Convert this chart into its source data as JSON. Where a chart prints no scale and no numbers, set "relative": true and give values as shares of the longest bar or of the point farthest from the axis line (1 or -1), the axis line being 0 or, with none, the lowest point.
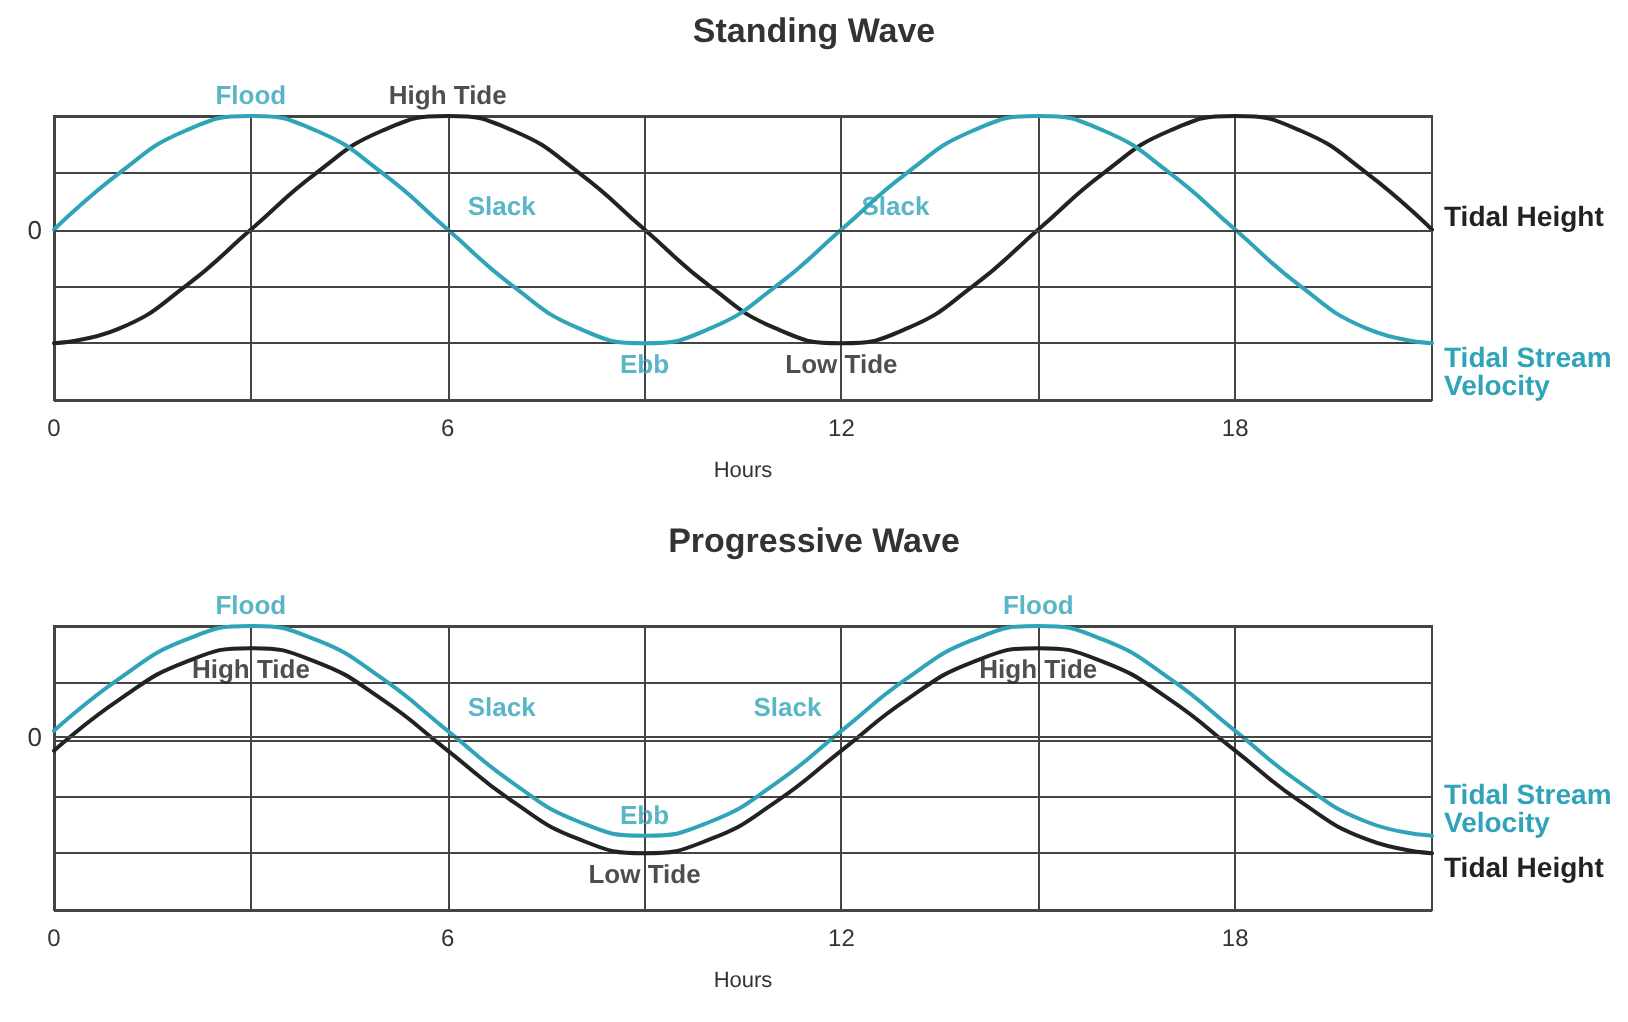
{
  "chart_data": [
    {
      "type": "line",
      "title": "Standing Wave",
      "xlabel": "Hours",
      "relative": true,
      "grid": true,
      "legend": false,
      "marker": "none",
      "line_style": "solid",
      "xlim": [
        0,
        21
      ],
      "xticks": [
        0,
        {
          "value": 3,
          "label": null
        },
        6,
        {
          "value": 9,
          "label": null
        },
        12,
        {
          "value": 15,
          "label": null
        },
        18
      ],
      "x": [
        0,
        1,
        2,
        3,
        4,
        5,
        6,
        7,
        8,
        9,
        10,
        11,
        12,
        13,
        14,
        15,
        16,
        17,
        18,
        19,
        20,
        21
      ],
      "series": [
        {
          "name": "Tidal Height",
          "color": "#222222",
          "values": [
            -1,
            -0.87,
            -0.5,
            0,
            0.5,
            0.87,
            1,
            0.87,
            0.5,
            0,
            -0.5,
            -0.87,
            -1,
            -0.87,
            -0.5,
            0,
            0.5,
            0.87,
            1,
            0.87,
            0.5,
            0
          ]
        },
        {
          "name": "Tidal Stream Velocity",
          "color": "#2fa4b8",
          "values": [
            0,
            0.5,
            0.87,
            1,
            0.87,
            0.5,
            0,
            -0.5,
            -0.87,
            -1,
            -0.87,
            -0.5,
            0,
            0.5,
            0.87,
            1,
            0.87,
            0.5,
            0,
            -0.5,
            -0.87,
            -1
          ]
        }
      ],
      "ref_lines": [
        {
          "axis": "y",
          "value": 0,
          "label": "0"
        }
      ],
      "annotations": [
        {
          "text": "Flood",
          "x": 3,
          "y": 1
        },
        {
          "text": "High Tide",
          "x": 6,
          "y": 1
        },
        {
          "text": "Slack",
          "x": 6,
          "y": 0
        },
        {
          "text": "Slack",
          "x": 12,
          "y": 0
        },
        {
          "text": "Ebb",
          "x": 9,
          "y": -1
        },
        {
          "text": "Low Tide",
          "x": 12,
          "y": -1
        }
      ]
    },
    {
      "type": "line",
      "title": "Progressive Wave",
      "xlabel": "Hours",
      "relative": true,
      "grid": true,
      "legend": false,
      "marker": "none",
      "line_style": "solid",
      "xlim": [
        0,
        21
      ],
      "xticks": [
        0,
        {
          "value": 3,
          "label": null
        },
        6,
        {
          "value": 9,
          "label": null
        },
        12,
        {
          "value": 15,
          "label": null
        },
        18
      ],
      "x": [
        0,
        1,
        2,
        3,
        4,
        5,
        6,
        7,
        8,
        9,
        10,
        11,
        12,
        13,
        14,
        15,
        16,
        17,
        18,
        19,
        20,
        21
      ],
      "series": [
        {
          "name": "Tidal Stream Velocity",
          "color": "#2fa4b8",
          "values": [
            0.05,
            0.5,
            0.83,
            0.95,
            0.83,
            0.5,
            0.05,
            -0.4,
            -0.73,
            -0.85,
            -0.73,
            -0.4,
            0.05,
            0.5,
            0.83,
            0.95,
            0.83,
            0.5,
            0.05,
            -0.4,
            -0.73,
            -0.85
          ]
        },
        {
          "name": "Tidal Height",
          "color": "#222222",
          "values": [
            -0.12,
            0.32,
            0.64,
            0.76,
            0.64,
            0.32,
            -0.12,
            -0.56,
            -0.88,
            -1,
            -0.88,
            -0.56,
            -0.12,
            0.32,
            0.64,
            0.76,
            0.64,
            0.32,
            -0.12,
            -0.56,
            -0.88,
            -1
          ]
        }
      ],
      "ref_lines": [
        {
          "axis": "y",
          "value": 0,
          "label": "0"
        }
      ],
      "annotations": [
        {
          "text": "Flood",
          "x": 3,
          "y": 0.95
        },
        {
          "text": "High Tide",
          "x": 3,
          "y": 0.76
        },
        {
          "text": "Slack",
          "x": 6,
          "y": 0.05
        },
        {
          "text": "Slack",
          "x": 12,
          "y": 0.05
        },
        {
          "text": "Ebb",
          "x": 9,
          "y": -0.85
        },
        {
          "text": "Low Tide",
          "x": 9,
          "y": -1
        },
        {
          "text": "Flood",
          "x": 15,
          "y": 0.95
        },
        {
          "text": "High Tide",
          "x": 15,
          "y": 0.76
        }
      ]
    }
  ]
}
